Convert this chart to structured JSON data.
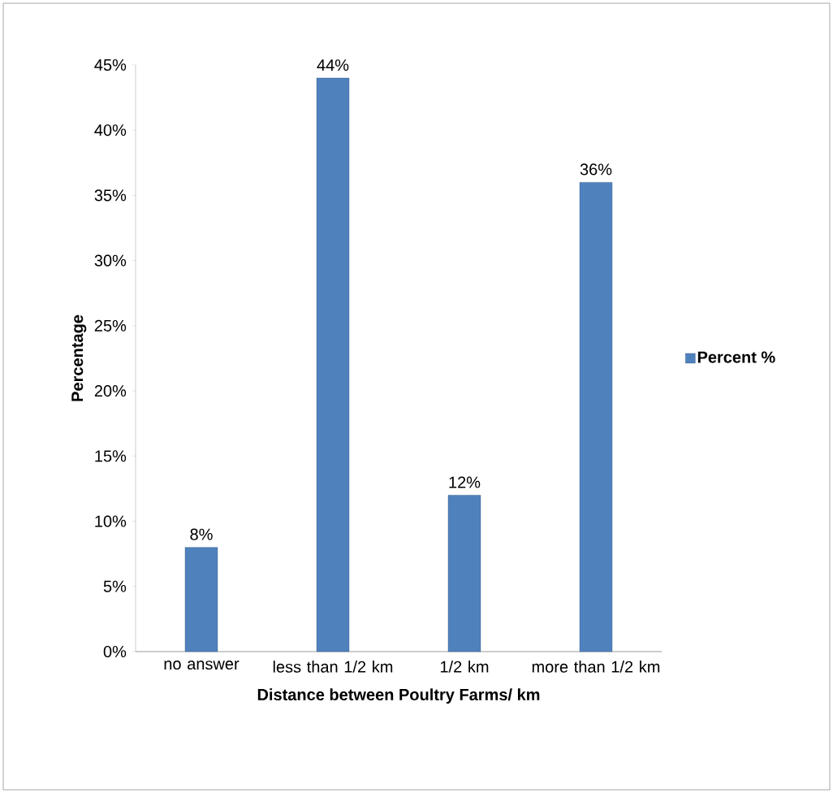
{
  "chart_data": {
    "type": "bar",
    "xlabel": "Distance between Poultry Farms/ km",
    "ylabel": "Percentage",
    "categories": [
      "no answer",
      "less than 1/2 km",
      "1/2 km",
      "more than 1/2 km"
    ],
    "series": [
      {
        "name": "Percent %",
        "color": "#4f81bd",
        "values": [
          8,
          44,
          12,
          36
        ],
        "value_labels": [
          "8%",
          "44%",
          "12%",
          "36%"
        ]
      }
    ],
    "ylim": [
      0,
      45
    ],
    "yticks": [
      {
        "value": 0,
        "label": "0%"
      },
      {
        "value": 5,
        "label": "5%"
      },
      {
        "value": 10,
        "label": "10%"
      },
      {
        "value": 15,
        "label": "15%"
      },
      {
        "value": 20,
        "label": "20%"
      },
      {
        "value": 25,
        "label": "25%"
      },
      {
        "value": 30,
        "label": "30%"
      },
      {
        "value": 35,
        "label": "35%"
      },
      {
        "value": 40,
        "label": "40%"
      },
      {
        "value": 45,
        "label": "45%"
      }
    ],
    "legend": "right",
    "grid": false
  }
}
